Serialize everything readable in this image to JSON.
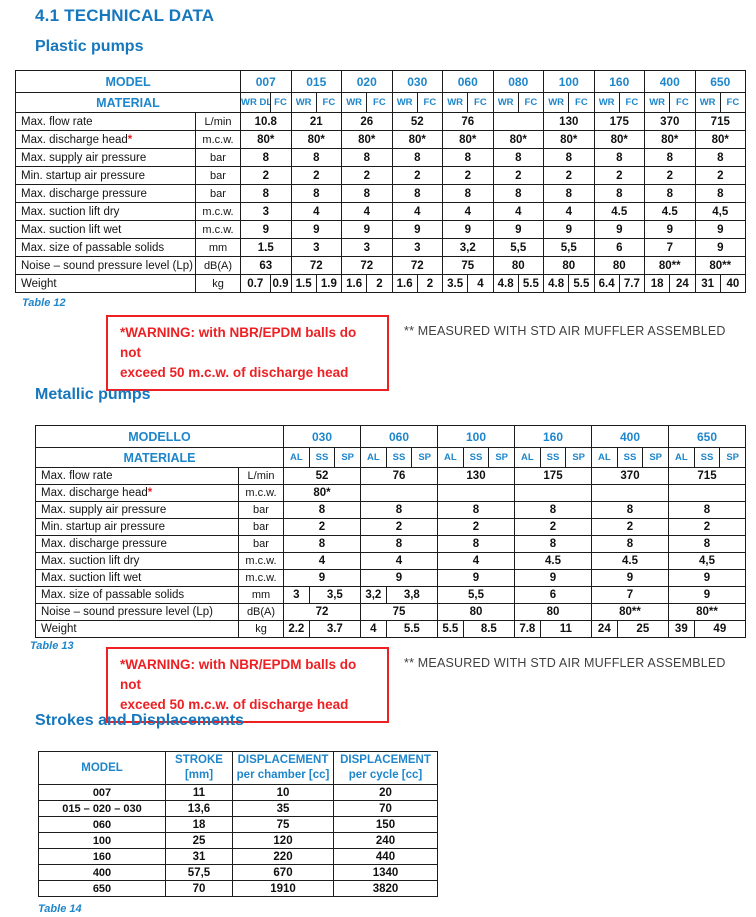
{
  "title": "4.1 TECHNICAL DATA",
  "notes": {
    "warning_line1": "*WARNING: with NBR/EPDM balls do not",
    "warning_line2": "exceed 50 m.c.w. of discharge head",
    "muffler": "** MEASURED WITH STD AIR MUFFLER ASSEMBLED"
  },
  "colors": {
    "heading_blue": "#1677bd",
    "table_blue": "#1e86cb",
    "warning_red": "#ed2024"
  },
  "plastic": {
    "heading": "Plastic pumps",
    "caption": "Table 12",
    "model_label": "MODEL",
    "material_label": "MATERIAL",
    "models": [
      "007",
      "015",
      "020",
      "030",
      "060",
      "080",
      "100",
      "160",
      "400",
      "650"
    ],
    "materials": [
      [
        "WR DL",
        "FC"
      ],
      [
        "WR",
        "FC"
      ],
      [
        "WR",
        "FC"
      ],
      [
        "WR",
        "FC"
      ],
      [
        "WR",
        "FC"
      ],
      [
        "WR",
        "FC"
      ],
      [
        "WR",
        "FC"
      ],
      [
        "WR",
        "FC"
      ],
      [
        "WR",
        "FC"
      ],
      [
        "WR",
        "FC"
      ]
    ],
    "rows": [
      {
        "label": "Max. flow rate",
        "unit": "L/min",
        "values": [
          "10.8",
          "21",
          "26",
          "52",
          "76",
          "",
          "130",
          "175",
          "370",
          "715"
        ]
      },
      {
        "label": "Max. discharge head",
        "star": "*",
        "unit": "m.c.w.",
        "values": [
          "80*",
          "80*",
          "80*",
          "80*",
          "80*",
          "80*",
          "80*",
          "80*",
          "80*",
          "80*"
        ]
      },
      {
        "label": "Max. supply air pressure",
        "unit": "bar",
        "values": [
          "8",
          "8",
          "8",
          "8",
          "8",
          "8",
          "8",
          "8",
          "8",
          "8"
        ]
      },
      {
        "label": "Min. startup air pressure",
        "unit": "bar",
        "values": [
          "2",
          "2",
          "2",
          "2",
          "2",
          "2",
          "2",
          "2",
          "2",
          "2"
        ]
      },
      {
        "label": "Max. discharge pressure",
        "unit": "bar",
        "values": [
          "8",
          "8",
          "8",
          "8",
          "8",
          "8",
          "8",
          "8",
          "8",
          "8"
        ]
      },
      {
        "label": "Max. suction lift dry",
        "unit": "m.c.w.",
        "values": [
          "3",
          "4",
          "4",
          "4",
          "4",
          "4",
          "4",
          "4.5",
          "4.5",
          "4,5"
        ]
      },
      {
        "label": "Max. suction lift wet",
        "unit": "m.c.w.",
        "values": [
          "9",
          "9",
          "9",
          "9",
          "9",
          "9",
          "9",
          "9",
          "9",
          "9"
        ]
      },
      {
        "label": "Max. size of passable solids",
        "unit": "mm",
        "values": [
          "1.5",
          "3",
          "3",
          "3",
          "3,2",
          "5,5",
          "5,5",
          "6",
          "7",
          "9"
        ]
      },
      {
        "label": "Noise – sound pressure level (Lp)",
        "unit": "dB(A)",
        "values": [
          "63",
          "72",
          "72",
          "72",
          "75",
          "80",
          "80",
          "80",
          "80**",
          "80**"
        ]
      },
      {
        "label": "Weight",
        "unit": "kg",
        "cells": [
          [
            "0.7",
            1
          ],
          [
            "0.9",
            1
          ],
          [
            "1.5",
            1
          ],
          [
            "1.9",
            1
          ],
          [
            "1.6",
            1
          ],
          [
            "2",
            1
          ],
          [
            "1.6",
            1
          ],
          [
            "2",
            1
          ],
          [
            "3.5",
            1
          ],
          [
            "4",
            1
          ],
          [
            "4.8",
            1
          ],
          [
            "5.5",
            1
          ],
          [
            "4.8",
            1
          ],
          [
            "5.5",
            1
          ],
          [
            "6.4",
            1
          ],
          [
            "7.7",
            1
          ],
          [
            "18",
            1
          ],
          [
            "24",
            1
          ],
          [
            "31",
            1
          ],
          [
            "40",
            1
          ]
        ]
      }
    ]
  },
  "metallic": {
    "heading": "Metallic pumps",
    "caption": "Table 13",
    "model_label": "MODELLO",
    "material_label": "MATERIALE",
    "models": [
      "030",
      "060",
      "100",
      "160",
      "400",
      "650"
    ],
    "materials": [
      [
        "AL",
        "SS",
        "SP"
      ],
      [
        "AL",
        "SS",
        "SP"
      ],
      [
        "AL",
        "SS",
        "SP"
      ],
      [
        "AL",
        "SS",
        "SP"
      ],
      [
        "AL",
        "SS",
        "SP"
      ],
      [
        "AL",
        "SS",
        "SP"
      ]
    ],
    "rows": [
      {
        "label": "Max. flow rate",
        "unit": "L/min",
        "values": [
          "52",
          "76",
          "130",
          "175",
          "370",
          "715"
        ]
      },
      {
        "label": "Max. discharge head",
        "star": "*",
        "unit": "m.c.w.",
        "values": [
          "80*",
          "",
          "",
          "",
          "",
          ""
        ]
      },
      {
        "label": "Max. supply air pressure",
        "unit": "bar",
        "values": [
          "8",
          "8",
          "8",
          "8",
          "8",
          "8"
        ]
      },
      {
        "label": "Min. startup air pressure",
        "unit": "bar",
        "values": [
          "2",
          "2",
          "2",
          "2",
          "2",
          "2"
        ]
      },
      {
        "label": "Max. discharge pressure",
        "unit": "bar",
        "values": [
          "8",
          "8",
          "8",
          "8",
          "8",
          "8"
        ]
      },
      {
        "label": "Max. suction lift dry",
        "unit": "m.c.w.",
        "values": [
          "4",
          "4",
          "4",
          "4.5",
          "4.5",
          "4,5"
        ]
      },
      {
        "label": "Max. suction lift wet",
        "unit": "m.c.w.",
        "values": [
          "9",
          "9",
          "9",
          "9",
          "9",
          "9"
        ]
      },
      {
        "label": "Max. size of passable solids",
        "unit": "mm",
        "cells": [
          [
            "3",
            1
          ],
          [
            "3,5",
            2
          ],
          [
            "3,2",
            1
          ],
          [
            "3,8",
            2
          ],
          [
            "5,5",
            3
          ],
          [
            "6",
            3
          ],
          [
            "7",
            3
          ],
          [
            "9",
            3
          ]
        ]
      },
      {
        "label": "Noise – sound pressure level (Lp)",
        "unit": "dB(A)",
        "values": [
          "72",
          "75",
          "80",
          "80",
          "80**",
          "80**"
        ]
      },
      {
        "label": "Weight",
        "unit": "kg",
        "cells": [
          [
            "2.2",
            1
          ],
          [
            "3.7",
            2
          ],
          [
            "4",
            1
          ],
          [
            "5.5",
            2
          ],
          [
            "5.5",
            1
          ],
          [
            "8.5",
            2
          ],
          [
            "7.8",
            1
          ],
          [
            "11",
            2
          ],
          [
            "24",
            1
          ],
          [
            "25",
            2
          ],
          [
            "39",
            1
          ],
          [
            "49",
            2
          ]
        ]
      }
    ]
  },
  "strokes": {
    "heading": "Strokes and Displacements",
    "caption": "Table 14",
    "columns": [
      [
        "MODEL"
      ],
      [
        "STROKE",
        "[mm]"
      ],
      [
        "DISPLACEMENT",
        "per chamber [cc]"
      ],
      [
        "DISPLACEMENT",
        "per cycle [cc]"
      ]
    ],
    "rows": [
      [
        "007",
        "11",
        "10",
        "20"
      ],
      [
        "015 – 020 – 030",
        "13,6",
        "35",
        "70"
      ],
      [
        "060",
        "18",
        "75",
        "150"
      ],
      [
        "100",
        "25",
        "120",
        "240"
      ],
      [
        "160",
        "31",
        "220",
        "440"
      ],
      [
        "400",
        "57,5",
        "670",
        "1340"
      ],
      [
        "650",
        "70",
        "1910",
        "3820"
      ]
    ]
  }
}
